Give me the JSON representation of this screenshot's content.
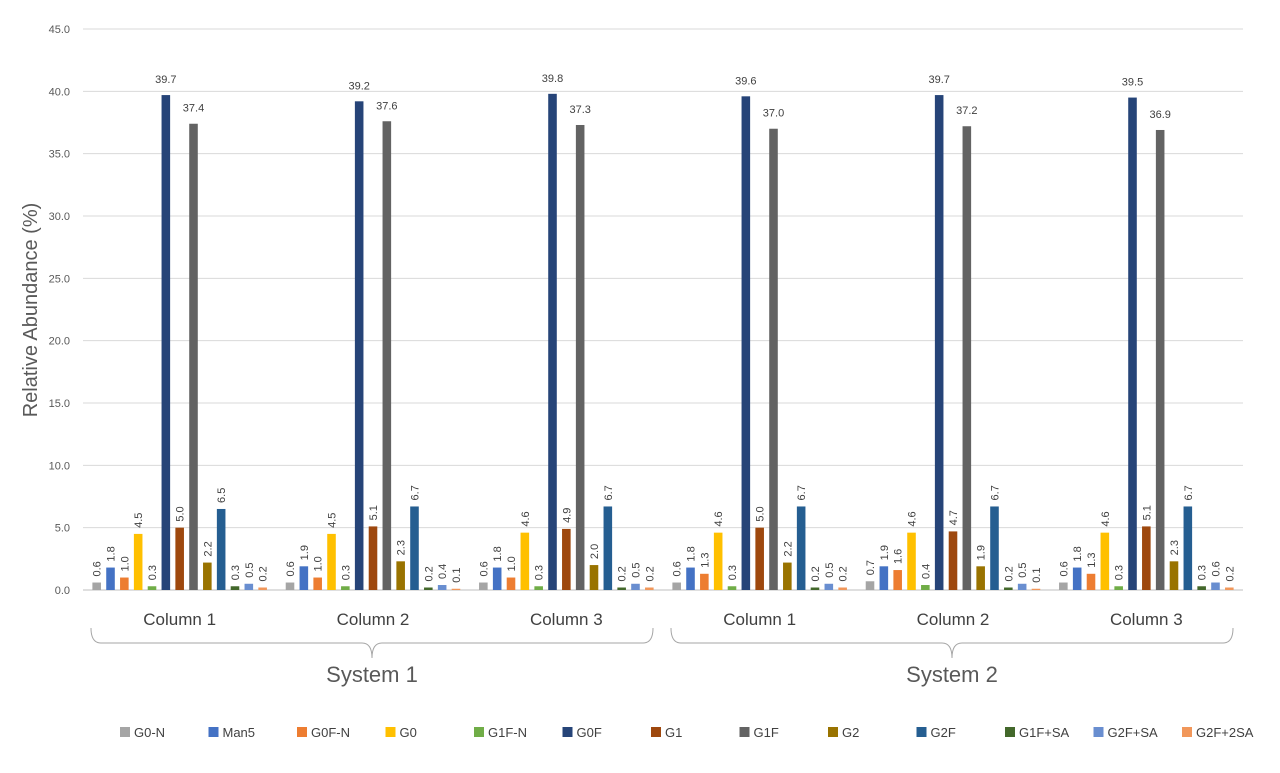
{
  "chart_data": {
    "type": "bar",
    "ylabel": "Relative Abundance (%)",
    "xlabel": "",
    "ylim": [
      0,
      45
    ],
    "ytick_step": 5,
    "ytick_labels": [
      "0.0",
      "5.0",
      "10.0",
      "15.0",
      "20.0",
      "25.0",
      "30.0",
      "35.0",
      "40.0",
      "45.0"
    ],
    "grid": true,
    "legend_position": "bottom",
    "categories": [
      "Column 1",
      "Column 2",
      "Column 3",
      "Column 1",
      "Column 2",
      "Column 3"
    ],
    "groups": [
      {
        "label": "System 1",
        "categories": [
          0,
          1,
          2
        ]
      },
      {
        "label": "System 2",
        "categories": [
          3,
          4,
          5
        ]
      }
    ],
    "series": [
      {
        "name": "G0-N",
        "color": "#A5A5A5",
        "values": [
          0.6,
          0.6,
          0.6,
          0.6,
          0.7,
          0.6
        ]
      },
      {
        "name": "Man5",
        "color": "#4472C4",
        "values": [
          1.8,
          1.9,
          1.8,
          1.8,
          1.9,
          1.8
        ]
      },
      {
        "name": "G0F-N",
        "color": "#ED7D31",
        "values": [
          1.0,
          1.0,
          1.0,
          1.3,
          1.6,
          1.3
        ]
      },
      {
        "name": "G0",
        "color": "#FFC000",
        "values": [
          4.5,
          4.5,
          4.6,
          4.6,
          4.6,
          4.6
        ]
      },
      {
        "name": "G1F-N",
        "color": "#70AD47",
        "values": [
          0.3,
          0.3,
          0.3,
          0.3,
          0.4,
          0.3
        ]
      },
      {
        "name": "G0F",
        "color": "#264478",
        "values": [
          39.7,
          39.2,
          39.8,
          39.6,
          39.7,
          39.5
        ]
      },
      {
        "name": "G1",
        "color": "#9E480E",
        "values": [
          5.0,
          5.1,
          4.9,
          5.0,
          4.7,
          5.1
        ]
      },
      {
        "name": "G1F",
        "color": "#636363",
        "values": [
          37.4,
          37.6,
          37.3,
          37.0,
          37.2,
          36.9
        ]
      },
      {
        "name": "G2",
        "color": "#997300",
        "values": [
          2.2,
          2.3,
          2.0,
          2.2,
          1.9,
          2.3
        ]
      },
      {
        "name": "G2F",
        "color": "#255E91",
        "values": [
          6.5,
          6.7,
          6.7,
          6.7,
          6.7,
          6.7
        ]
      },
      {
        "name": "G1F+SA",
        "color": "#43682B",
        "values": [
          0.3,
          0.2,
          0.2,
          0.2,
          0.2,
          0.3
        ]
      },
      {
        "name": "G2F+SA",
        "color": "#698ED0",
        "values": [
          0.5,
          0.4,
          0.5,
          0.5,
          0.5,
          0.6
        ]
      },
      {
        "name": "G2F+2SA",
        "color": "#F1975A",
        "values": [
          0.2,
          0.1,
          0.2,
          0.2,
          0.1,
          0.2
        ]
      }
    ],
    "rotated_label_series": [
      "G0-N",
      "Man5",
      "G0F-N",
      "G0",
      "G1F-N",
      "G1",
      "G2",
      "G2F",
      "G1F+SA",
      "G2F+SA",
      "G2F+2SA"
    ],
    "gridline_color": "#D9D9D9",
    "axis_color": "#BFBFBF"
  }
}
